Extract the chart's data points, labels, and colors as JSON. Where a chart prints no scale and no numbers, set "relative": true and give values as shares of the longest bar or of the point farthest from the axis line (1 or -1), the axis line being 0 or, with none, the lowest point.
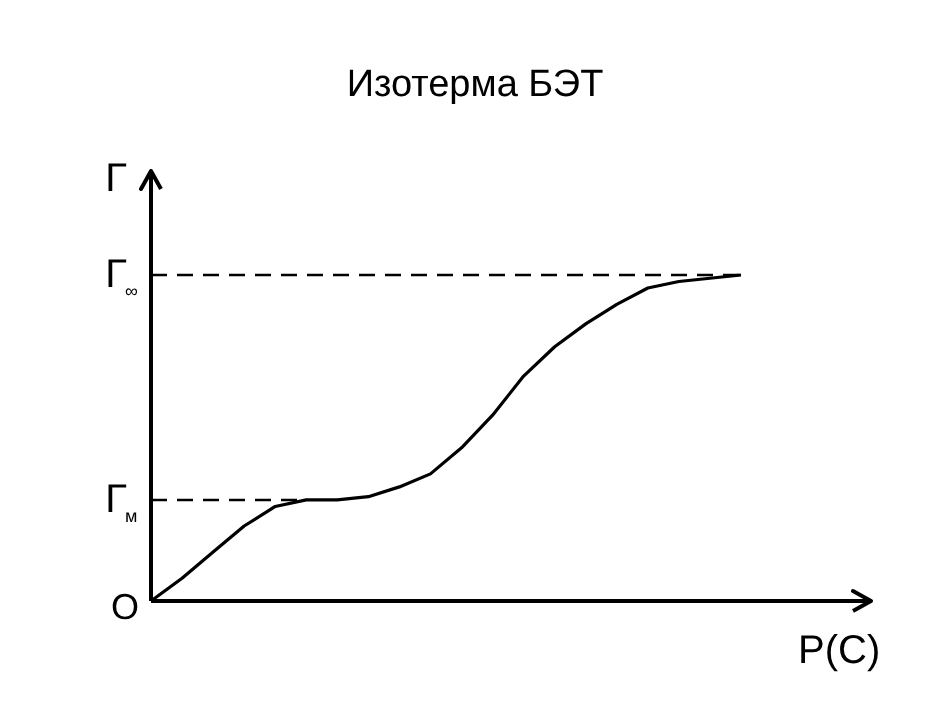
{
  "chart_data": {
    "type": "line",
    "title": "Изотерма БЭТ",
    "xlabel": "P(C)",
    "ylabel": "Г",
    "relative": true,
    "grid": false,
    "line_style": "solid",
    "categories": [
      null,
      null,
      null,
      null,
      null,
      null,
      null,
      null,
      null,
      null,
      null,
      null,
      null,
      null,
      null,
      null,
      null,
      null,
      null,
      null
    ],
    "series": [
      {
        "color": "#000000",
        "values": [
          0,
          0.07,
          0.15,
          0.23,
          0.29,
          0.31,
          0.31,
          0.32,
          0.35,
          0.39,
          0.47,
          0.57,
          0.69,
          0.78,
          0.85,
          0.91,
          0.96,
          0.98,
          0.99,
          1
        ]
      }
    ],
    "ref_lines": [
      {
        "axis": "y",
        "value": 1,
        "label": "Г$_{∞}$",
        "line_style": "dashed",
        "color": "#000000"
      },
      {
        "axis": "y",
        "value": 0.31,
        "label": "Г$_{м}$",
        "line_style": "dashed",
        "color": "#000000"
      }
    ],
    "annotations": [
      "O"
    ]
  }
}
